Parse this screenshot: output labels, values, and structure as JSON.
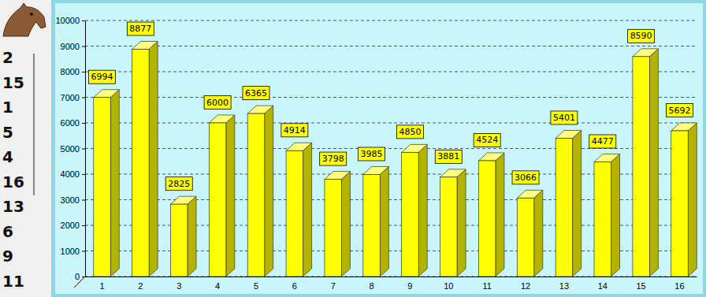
{
  "chart_data": {
    "type": "bar",
    "categories": [
      "1",
      "2",
      "3",
      "4",
      "5",
      "6",
      "7",
      "8",
      "9",
      "10",
      "11",
      "12",
      "13",
      "14",
      "15",
      "16"
    ],
    "values": [
      6994,
      8877,
      2825,
      6000,
      6365,
      4914,
      3798,
      3985,
      4850,
      3881,
      4524,
      3066,
      5401,
      4477,
      8590,
      5692
    ],
    "color": "#ffff00",
    "ylim": [
      0,
      10000
    ],
    "yticks": [
      0,
      1000,
      2000,
      3000,
      4000,
      5000,
      6000,
      7000,
      8000,
      9000,
      10000
    ],
    "grid": true,
    "data_labels": true
  },
  "sidebar": {
    "ranking": [
      2,
      15,
      1,
      5,
      4,
      16,
      13,
      6,
      9,
      11
    ]
  }
}
